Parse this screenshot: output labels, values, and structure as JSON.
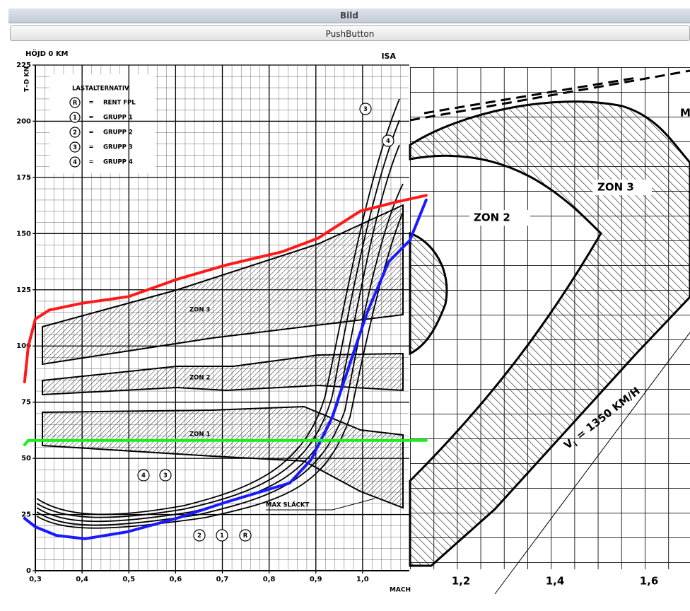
{
  "window": {
    "title": "Bild",
    "button": "PushButton"
  },
  "chart_data": {
    "type": "line",
    "title": "HÖJD 0 KM",
    "subtitle": "ISA",
    "y_label": "T–D KN",
    "x_label": "MACH",
    "xlim": [
      0.3,
      1.1
    ],
    "ylim": [
      0,
      225
    ],
    "xticks": [
      {
        "value": 0.3,
        "label": "0,3"
      },
      {
        "value": 0.4,
        "label": "0,4"
      },
      {
        "value": 0.5,
        "label": "0,5"
      },
      {
        "value": 0.6,
        "label": "0,6"
      },
      {
        "value": 0.7,
        "label": "0,7"
      },
      {
        "value": 0.8,
        "label": "0,8"
      },
      {
        "value": 0.9,
        "label": "0,9"
      },
      {
        "value": 1.0,
        "label": "1,0"
      }
    ],
    "yticks": [
      0,
      25,
      50,
      75,
      100,
      125,
      150,
      175,
      200,
      225
    ],
    "grid": true,
    "series": [
      {
        "color": "#ff1a1a",
        "x": [
          0.277,
          0.285,
          0.3,
          0.33,
          0.4,
          0.5,
          0.602,
          0.708,
          0.829,
          0.905,
          0.995,
          1.071,
          1.136
        ],
        "values": [
          84,
          100,
          112,
          116,
          119,
          122,
          129.6,
          136,
          142,
          148,
          160,
          164,
          167
        ]
      },
      {
        "color": "#1a1aff",
        "x": [
          0.277,
          0.3,
          0.345,
          0.406,
          0.497,
          0.602,
          0.708,
          0.844,
          0.89,
          0.935,
          0.98,
          1.011,
          1.056,
          1.101,
          1.136
        ],
        "values": [
          23.3,
          19.5,
          15.7,
          14.2,
          17.3,
          23.3,
          30.5,
          39,
          49.4,
          68.3,
          96.6,
          115.5,
          137.5,
          147,
          165
        ]
      },
      {
        "color": "#1aee1a",
        "x": [
          0.277,
          0.285,
          1.136
        ],
        "values": [
          56,
          58,
          58
        ]
      }
    ],
    "legend_title": "LASTALTERNATIV",
    "legend_items": [
      {
        "symbol": "R",
        "sep": "=",
        "text": "RENT FPL"
      },
      {
        "symbol": "1",
        "sep": "=",
        "text": "GRUPP 1"
      },
      {
        "symbol": "2",
        "sep": "=",
        "text": "GRUPP 2"
      },
      {
        "symbol": "3",
        "sep": "=",
        "text": "GRUPP 3"
      },
      {
        "symbol": "4",
        "sep": "=",
        "text": "GRUPP 4"
      }
    ],
    "zone_labels": [
      "ZON 3",
      "ZON 2",
      "ZON 1"
    ],
    "max_label": "MAX SLÄCKT",
    "curve_labels": [
      "4",
      "3",
      "2",
      "1",
      "R",
      "3",
      "4"
    ]
  },
  "zoom": {
    "labels": [
      "ZON 3",
      "ZON 2",
      "V",
      "i",
      "= 1350 KM/H",
      "M"
    ],
    "xticks": [
      "1,2",
      "1,4",
      "1,6"
    ]
  }
}
